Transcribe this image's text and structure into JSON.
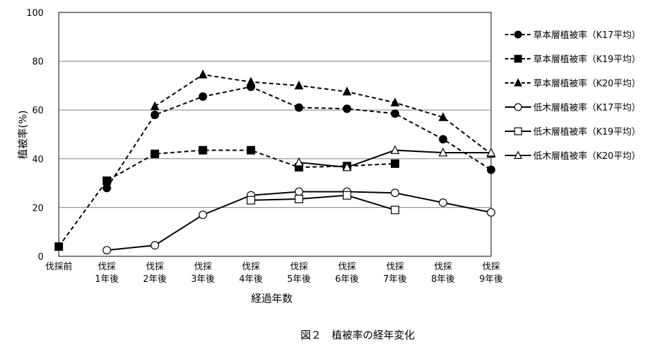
{
  "chart_data": {
    "type": "line",
    "caption": "図２　植被率の経年変化",
    "xlabel": "経過年数",
    "ylabel": "植被率(%)",
    "ylim": [
      0,
      100
    ],
    "yticks": [
      0,
      20,
      40,
      60,
      80,
      100
    ],
    "grid": true,
    "legend_position": "right",
    "categories": [
      [
        "伐採前"
      ],
      [
        "伐採",
        "1年後"
      ],
      [
        "伐採",
        "2年後"
      ],
      [
        "伐採",
        "3年後"
      ],
      [
        "伐採",
        "4年後"
      ],
      [
        "伐採",
        "5年後"
      ],
      [
        "伐採",
        "6年後"
      ],
      [
        "伐採",
        "7年後"
      ],
      [
        "伐採",
        "8年後"
      ],
      [
        "伐採",
        "9年後"
      ]
    ],
    "series": [
      {
        "name": "草本層植被率（K17平均）",
        "marker": "circle",
        "filled": true,
        "dashed": true,
        "values": [
          null,
          28,
          58,
          65.5,
          69.5,
          61,
          60.5,
          58.5,
          48,
          35.5
        ]
      },
      {
        "name": "草本層植被率（K19平均）",
        "marker": "square",
        "filled": true,
        "dashed": true,
        "values": [
          4,
          31,
          42,
          43.5,
          43.5,
          36.5,
          37,
          38,
          null,
          null
        ]
      },
      {
        "name": "草本層植被率（K20平均）",
        "marker": "triangle",
        "filled": true,
        "dashed": true,
        "values": [
          null,
          null,
          61.5,
          74.5,
          71.5,
          70,
          67.5,
          63,
          57,
          42
        ]
      },
      {
        "name": "低木層植被率（K17平均）",
        "marker": "circle",
        "filled": false,
        "dashed": false,
        "values": [
          null,
          2.5,
          4.5,
          17,
          25,
          26.5,
          26.5,
          26,
          22,
          18
        ]
      },
      {
        "name": "低木層植被率（K19平均）",
        "marker": "square",
        "filled": false,
        "dashed": false,
        "values": [
          null,
          null,
          null,
          null,
          23,
          23.5,
          25,
          19,
          null,
          null
        ]
      },
      {
        "name": "低木層植被率（K20平均）",
        "marker": "triangle",
        "filled": false,
        "dashed": false,
        "values": [
          null,
          null,
          null,
          null,
          null,
          38.5,
          36.5,
          43.5,
          42.5,
          42.5
        ]
      }
    ]
  }
}
